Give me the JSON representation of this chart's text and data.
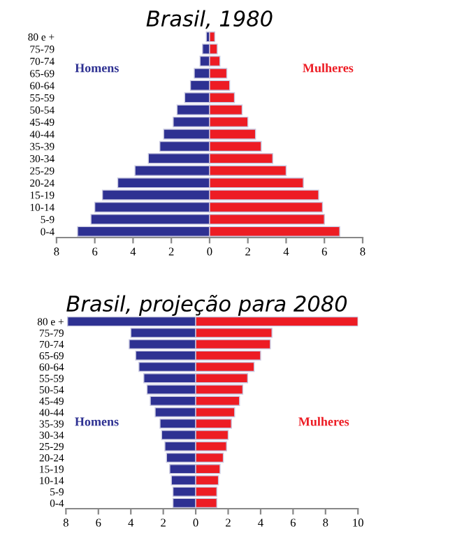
{
  "chart_data": [
    {
      "type": "bar",
      "orientation": "horizontal",
      "stacked": true,
      "title": "Brasil, 1980",
      "categories": [
        "80 e +",
        "75-79",
        "70-74",
        "65-69",
        "60-64",
        "55-59",
        "50-54",
        "45-49",
        "40-44",
        "35-39",
        "30-34",
        "25-29",
        "20-24",
        "15-19",
        "10-14",
        "5-9",
        "0-4"
      ],
      "series": [
        {
          "name": "Homens",
          "color": "#2e3192",
          "values": [
            -0.17,
            -0.37,
            -0.5,
            -0.8,
            -1.0,
            -1.3,
            -1.7,
            -1.9,
            -2.4,
            -2.6,
            -3.2,
            -3.9,
            -4.8,
            -5.6,
            -6.0,
            -6.2,
            -6.9
          ]
        },
        {
          "name": "Mulheres",
          "color": "#ed1c24",
          "values": [
            0.27,
            0.4,
            0.54,
            0.9,
            1.05,
            1.3,
            1.7,
            2.0,
            2.4,
            2.7,
            3.3,
            4.0,
            4.9,
            5.7,
            5.9,
            6.0,
            6.8
          ]
        }
      ],
      "xlim": [
        -8,
        8
      ],
      "xticks": [
        {
          "value": -8,
          "label": "8"
        },
        {
          "value": -6,
          "label": "6"
        },
        {
          "value": -4,
          "label": "4"
        },
        {
          "value": -2,
          "label": "2"
        },
        0,
        2,
        4,
        6,
        8
      ],
      "grid": false,
      "legend": false
    },
    {
      "type": "bar",
      "orientation": "horizontal",
      "stacked": true,
      "title": "Brasil, projeção para 2080",
      "categories": [
        "80 e +",
        "75-79",
        "70-74",
        "65-69",
        "60-64",
        "55-59",
        "50-54",
        "45-49",
        "40-44",
        "35-39",
        "30-34",
        "25-29",
        "20-24",
        "15-19",
        "10-14",
        "5-9",
        "0-4"
      ],
      "series": [
        {
          "name": "Homens",
          "color": "#2e3192",
          "values": [
            -7.9,
            -4.0,
            -4.1,
            -3.7,
            -3.5,
            -3.2,
            -3.0,
            -2.8,
            -2.5,
            -2.2,
            -2.1,
            -1.9,
            -1.8,
            -1.6,
            -1.5,
            -1.4,
            -1.4
          ]
        },
        {
          "name": "Mulheres",
          "color": "#ed1c24",
          "values": [
            10.0,
            4.7,
            4.6,
            4.0,
            3.6,
            3.2,
            2.9,
            2.7,
            2.4,
            2.2,
            2.0,
            1.9,
            1.7,
            1.5,
            1.4,
            1.3,
            1.3
          ]
        }
      ],
      "xlim": [
        -8,
        10
      ],
      "xticks": [
        {
          "value": -8,
          "label": "8"
        },
        {
          "value": -6,
          "label": "6"
        },
        {
          "value": -4,
          "label": "4"
        },
        {
          "value": -2,
          "label": "2"
        },
        0,
        2,
        4,
        6,
        8,
        10
      ],
      "grid": false,
      "legend": false
    }
  ]
}
